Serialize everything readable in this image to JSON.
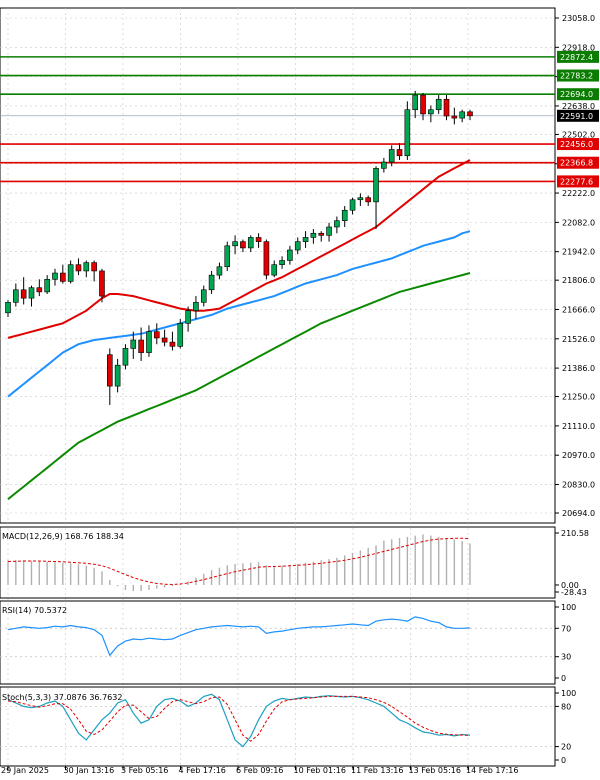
{
  "chart_data": {
    "type": "candlestick",
    "instrument_note": "",
    "x_tick_labels": [
      "29 Jan 2025",
      "30 Jan 13:16",
      "3 Feb 05:16",
      "4 Feb 17:16",
      "6 Feb 09:16",
      "10 Feb 01:16",
      "11 Feb 13:16",
      "13 Feb 05:16",
      "14 Feb 17:16"
    ],
    "price_axis": {
      "ylim": [
        20694.0,
        23058.0
      ],
      "tick_labels": [
        "23058.0",
        "22918.0",
        "22778.0",
        "22638.0",
        "22502.0",
        "22362.0",
        "22222.0",
        "22082.0",
        "21942.0",
        "21806.0",
        "21666.0",
        "21526.0",
        "21386.0",
        "21250.0",
        "21110.0",
        "20970.0",
        "20830.0",
        "20694.0"
      ]
    },
    "horizontal_levels": [
      {
        "label": "22872.4",
        "value": 22872.4,
        "kind": "resistance",
        "color": "#0a7d00"
      },
      {
        "label": "22783.2",
        "value": 22783.2,
        "kind": "resistance",
        "color": "#0a7d00"
      },
      {
        "label": "22694.0",
        "value": 22694.0,
        "kind": "resistance",
        "color": "#0a7d00"
      },
      {
        "label": "22456.0",
        "value": 22456.0,
        "kind": "support",
        "color": "#e00000"
      },
      {
        "label": "22366.8",
        "value": 22366.8,
        "kind": "support",
        "color": "#e00000"
      },
      {
        "label": "22277.6",
        "value": 22277.6,
        "kind": "support",
        "color": "#e00000"
      }
    ],
    "current_price": {
      "label": "22591.0",
      "value": 22591.0
    },
    "candles": [
      [
        21650,
        21710,
        21630,
        21700
      ],
      [
        21700,
        21790,
        21680,
        21760
      ],
      [
        21760,
        21820,
        21690,
        21720
      ],
      [
        21720,
        21780,
        21680,
        21770
      ],
      [
        21770,
        21810,
        21730,
        21750
      ],
      [
        21750,
        21830,
        21740,
        21810
      ],
      [
        21810,
        21860,
        21780,
        21840
      ],
      [
        21840,
        21880,
        21790,
        21800
      ],
      [
        21800,
        21900,
        21790,
        21880
      ],
      [
        21880,
        21910,
        21830,
        21850
      ],
      [
        21850,
        21900,
        21820,
        21890
      ],
      [
        21890,
        21900,
        21800,
        21850
      ],
      [
        21850,
        21860,
        21700,
        21730
      ],
      [
        21450,
        21480,
        21210,
        21300
      ],
      [
        21300,
        21430,
        21270,
        21400
      ],
      [
        21400,
        21500,
        21380,
        21480
      ],
      [
        21480,
        21560,
        21430,
        21520
      ],
      [
        21520,
        21580,
        21420,
        21460
      ],
      [
        21460,
        21590,
        21440,
        21560
      ],
      [
        21560,
        21600,
        21500,
        21530
      ],
      [
        21530,
        21570,
        21490,
        21510
      ],
      [
        21510,
        21560,
        21470,
        21490
      ],
      [
        21490,
        21620,
        21480,
        21600
      ],
      [
        21600,
        21680,
        21560,
        21660
      ],
      [
        21660,
        21730,
        21620,
        21700
      ],
      [
        21700,
        21780,
        21680,
        21760
      ],
      [
        21760,
        21850,
        21740,
        21830
      ],
      [
        21830,
        21890,
        21810,
        21870
      ],
      [
        21870,
        21990,
        21850,
        21970
      ],
      [
        21970,
        22020,
        21930,
        21990
      ],
      [
        21990,
        22000,
        21940,
        21960
      ],
      [
        21960,
        22020,
        21940,
        22010
      ],
      [
        22010,
        22030,
        21960,
        21990
      ],
      [
        21990,
        22000,
        21810,
        21830
      ],
      [
        21830,
        21900,
        21820,
        21880
      ],
      [
        21880,
        21920,
        21860,
        21900
      ],
      [
        21900,
        21970,
        21880,
        21950
      ],
      [
        21950,
        22010,
        21930,
        21990
      ],
      [
        21990,
        22040,
        21960,
        22010
      ],
      [
        22010,
        22050,
        21980,
        22030
      ],
      [
        22030,
        22040,
        21990,
        22020
      ],
      [
        22020,
        22080,
        21990,
        22060
      ],
      [
        22060,
        22110,
        22030,
        22090
      ],
      [
        22090,
        22160,
        22060,
        22140
      ],
      [
        22140,
        22200,
        22120,
        22190
      ],
      [
        22190,
        22220,
        22160,
        22200
      ],
      [
        22200,
        22210,
        22160,
        22180
      ],
      [
        22180,
        22350,
        22050,
        22340
      ],
      [
        22340,
        22390,
        22320,
        22370
      ],
      [
        22370,
        22450,
        22350,
        22430
      ],
      [
        22430,
        22460,
        22380,
        22400
      ],
      [
        22400,
        22660,
        22380,
        22620
      ],
      [
        22620,
        22710,
        22580,
        22690
      ],
      [
        22690,
        22700,
        22570,
        22600
      ],
      [
        22600,
        22640,
        22560,
        22620
      ],
      [
        22620,
        22690,
        22600,
        22670
      ],
      [
        22670,
        22690,
        22570,
        22590
      ],
      [
        22590,
        22630,
        22550,
        22580
      ],
      [
        22580,
        22620,
        22560,
        22610
      ],
      [
        22610,
        22620,
        22570,
        22591
      ]
    ],
    "moving_averages": [
      {
        "name": "MA red",
        "color": "#e00000",
        "values": [
          21530,
          21540,
          21550,
          21560,
          21570,
          21580,
          21590,
          21600,
          21620,
          21640,
          21660,
          21690,
          21720,
          21740,
          21740,
          21735,
          21730,
          21720,
          21710,
          21700,
          21690,
          21680,
          21670,
          21665,
          21660,
          21660,
          21665,
          21670,
          21690,
          21710,
          21730,
          21750,
          21770,
          21790,
          21805,
          21820,
          21840,
          21860,
          21880,
          21900,
          21920,
          21940,
          21960,
          21980,
          22000,
          22020,
          22040,
          22060,
          22090,
          22120,
          22150,
          22180,
          22210,
          22240,
          22270,
          22300,
          22320,
          22340,
          22360,
          22380
        ]
      },
      {
        "name": "MA blue",
        "color": "#1e90ff",
        "values": [
          21250,
          21280,
          21310,
          21340,
          21370,
          21400,
          21430,
          21460,
          21480,
          21500,
          21510,
          21520,
          21525,
          21530,
          21535,
          21540,
          21545,
          21550,
          21560,
          21570,
          21580,
          21590,
          21600,
          21610,
          21620,
          21630,
          21640,
          21655,
          21670,
          21680,
          21690,
          21700,
          21710,
          21720,
          21730,
          21745,
          21760,
          21775,
          21790,
          21800,
          21810,
          21820,
          21830,
          21845,
          21860,
          21870,
          21880,
          21890,
          21900,
          21910,
          21925,
          21940,
          21955,
          21970,
          21980,
          21990,
          22000,
          22010,
          22030,
          22040
        ]
      },
      {
        "name": "MA green",
        "color": "#0a8a00",
        "values": [
          20760,
          20790,
          20820,
          20850,
          20880,
          20910,
          20940,
          20970,
          21000,
          21030,
          21050,
          21070,
          21090,
          21110,
          21130,
          21145,
          21160,
          21175,
          21190,
          21205,
          21220,
          21235,
          21250,
          21265,
          21280,
          21300,
          21320,
          21340,
          21360,
          21380,
          21400,
          21420,
          21440,
          21460,
          21480,
          21500,
          21520,
          21540,
          21560,
          21580,
          21600,
          21615,
          21630,
          21645,
          21660,
          21675,
          21690,
          21705,
          21720,
          21735,
          21750,
          21760,
          21770,
          21780,
          21790,
          21800,
          21810,
          21820,
          21830,
          21840
        ]
      }
    ],
    "macd": {
      "title": "MACD(12,26,9) 168.76 188.34",
      "ylim": [
        -28.43,
        210.58
      ],
      "tick_labels": [
        "210.58",
        "0.00",
        "-28.43"
      ],
      "histogram": [
        100,
        100,
        100,
        98,
        96,
        94,
        92,
        90,
        88,
        84,
        78,
        70,
        55,
        20,
        -5,
        -20,
        -25,
        -25,
        -20,
        -15,
        -10,
        -5,
        5,
        15,
        30,
        45,
        60,
        70,
        80,
        85,
        88,
        90,
        92,
        80,
        75,
        78,
        82,
        85,
        90,
        95,
        100,
        105,
        110,
        120,
        130,
        140,
        150,
        160,
        180,
        185,
        190,
        195,
        200,
        205,
        200,
        195,
        190,
        185,
        178,
        168.76
      ],
      "signal": [
        95,
        96,
        97,
        97,
        97,
        96,
        95,
        94,
        92,
        90,
        88,
        84,
        78,
        68,
        55,
        42,
        30,
        20,
        12,
        6,
        3,
        2,
        4,
        8,
        15,
        22,
        30,
        38,
        46,
        54,
        60,
        66,
        72,
        74,
        75,
        76,
        78,
        80,
        82,
        85,
        88,
        92,
        96,
        100,
        106,
        112,
        120,
        128,
        136,
        144,
        152,
        160,
        168,
        176,
        182,
        186,
        188,
        189,
        189,
        188.34
      ]
    },
    "rsi": {
      "title": "RSI(14) 70.5372",
      "ylim": [
        0,
        100
      ],
      "tick_labels": [
        "100",
        "70",
        "30",
        "0"
      ],
      "values": [
        68,
        70,
        72,
        71,
        70,
        71,
        73,
        72,
        74,
        72,
        71,
        68,
        60,
        32,
        45,
        52,
        55,
        54,
        56,
        55,
        54,
        55,
        60,
        64,
        68,
        70,
        72,
        73,
        74,
        73,
        72,
        73,
        72,
        63,
        65,
        66,
        68,
        70,
        71,
        72,
        72,
        73,
        74,
        75,
        76,
        75,
        74,
        80,
        82,
        83,
        82,
        80,
        86,
        84,
        80,
        78,
        72,
        70,
        70,
        70.5372
      ]
    },
    "stoch": {
      "title": "Stoch(5,3,3) 37.0876 36.7632",
      "ylim": [
        0,
        100
      ],
      "tick_labels": [
        "100",
        "80",
        "20",
        "0"
      ],
      "k": [
        90,
        85,
        80,
        78,
        80,
        85,
        88,
        80,
        60,
        40,
        30,
        45,
        60,
        70,
        85,
        90,
        70,
        55,
        60,
        80,
        90,
        92,
        88,
        80,
        85,
        95,
        98,
        90,
        60,
        30,
        20,
        35,
        60,
        80,
        88,
        92,
        90,
        92,
        94,
        93,
        95,
        96,
        95,
        94,
        95,
        93,
        90,
        85,
        80,
        70,
        60,
        55,
        48,
        42,
        40,
        37.0876,
        38,
        36,
        38,
        37.0876
      ],
      "d": [
        88,
        87,
        84,
        81,
        79,
        81,
        84,
        84,
        76,
        60,
        43,
        38,
        45,
        58,
        72,
        82,
        82,
        72,
        62,
        65,
        77,
        87,
        90,
        87,
        84,
        87,
        93,
        94,
        83,
        60,
        37,
        28,
        38,
        58,
        76,
        87,
        90,
        91,
        92,
        93,
        94,
        95,
        95,
        95,
        95,
        94,
        93,
        90,
        86,
        80,
        72,
        64,
        55,
        49,
        44,
        40,
        38.5,
        37.5,
        37.2,
        36.7632
      ]
    }
  }
}
